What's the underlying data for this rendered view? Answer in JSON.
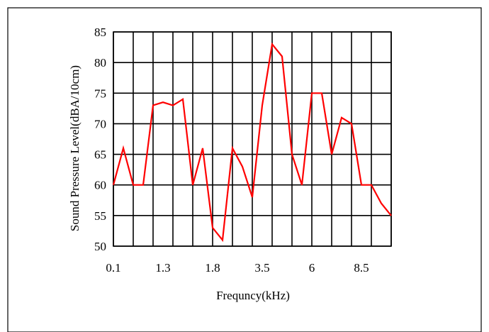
{
  "chart_data": {
    "type": "line",
    "title": "",
    "xlabel": "Frequncy(kHz)",
    "ylabel": "Sound Pressure Level(dBA/10cm)",
    "ylim": [
      50,
      85
    ],
    "yticks": [
      50,
      55,
      60,
      65,
      70,
      75,
      80,
      85
    ],
    "x_tick_labels": [
      "0.1",
      "1.3",
      "1.8",
      "3.5",
      "6",
      "8.5"
    ],
    "x_tick_label_index": [
      0,
      5,
      10,
      15,
      20,
      25
    ],
    "grid": true,
    "line_color": "#ff0000",
    "series": [
      {
        "values": [
          60,
          66,
          60,
          60,
          73,
          73.5,
          73,
          74,
          60,
          66,
          53,
          51,
          66,
          63,
          58,
          73,
          83,
          81,
          65,
          60,
          75,
          75,
          65,
          71,
          70,
          60,
          60,
          57,
          55
        ]
      }
    ]
  }
}
